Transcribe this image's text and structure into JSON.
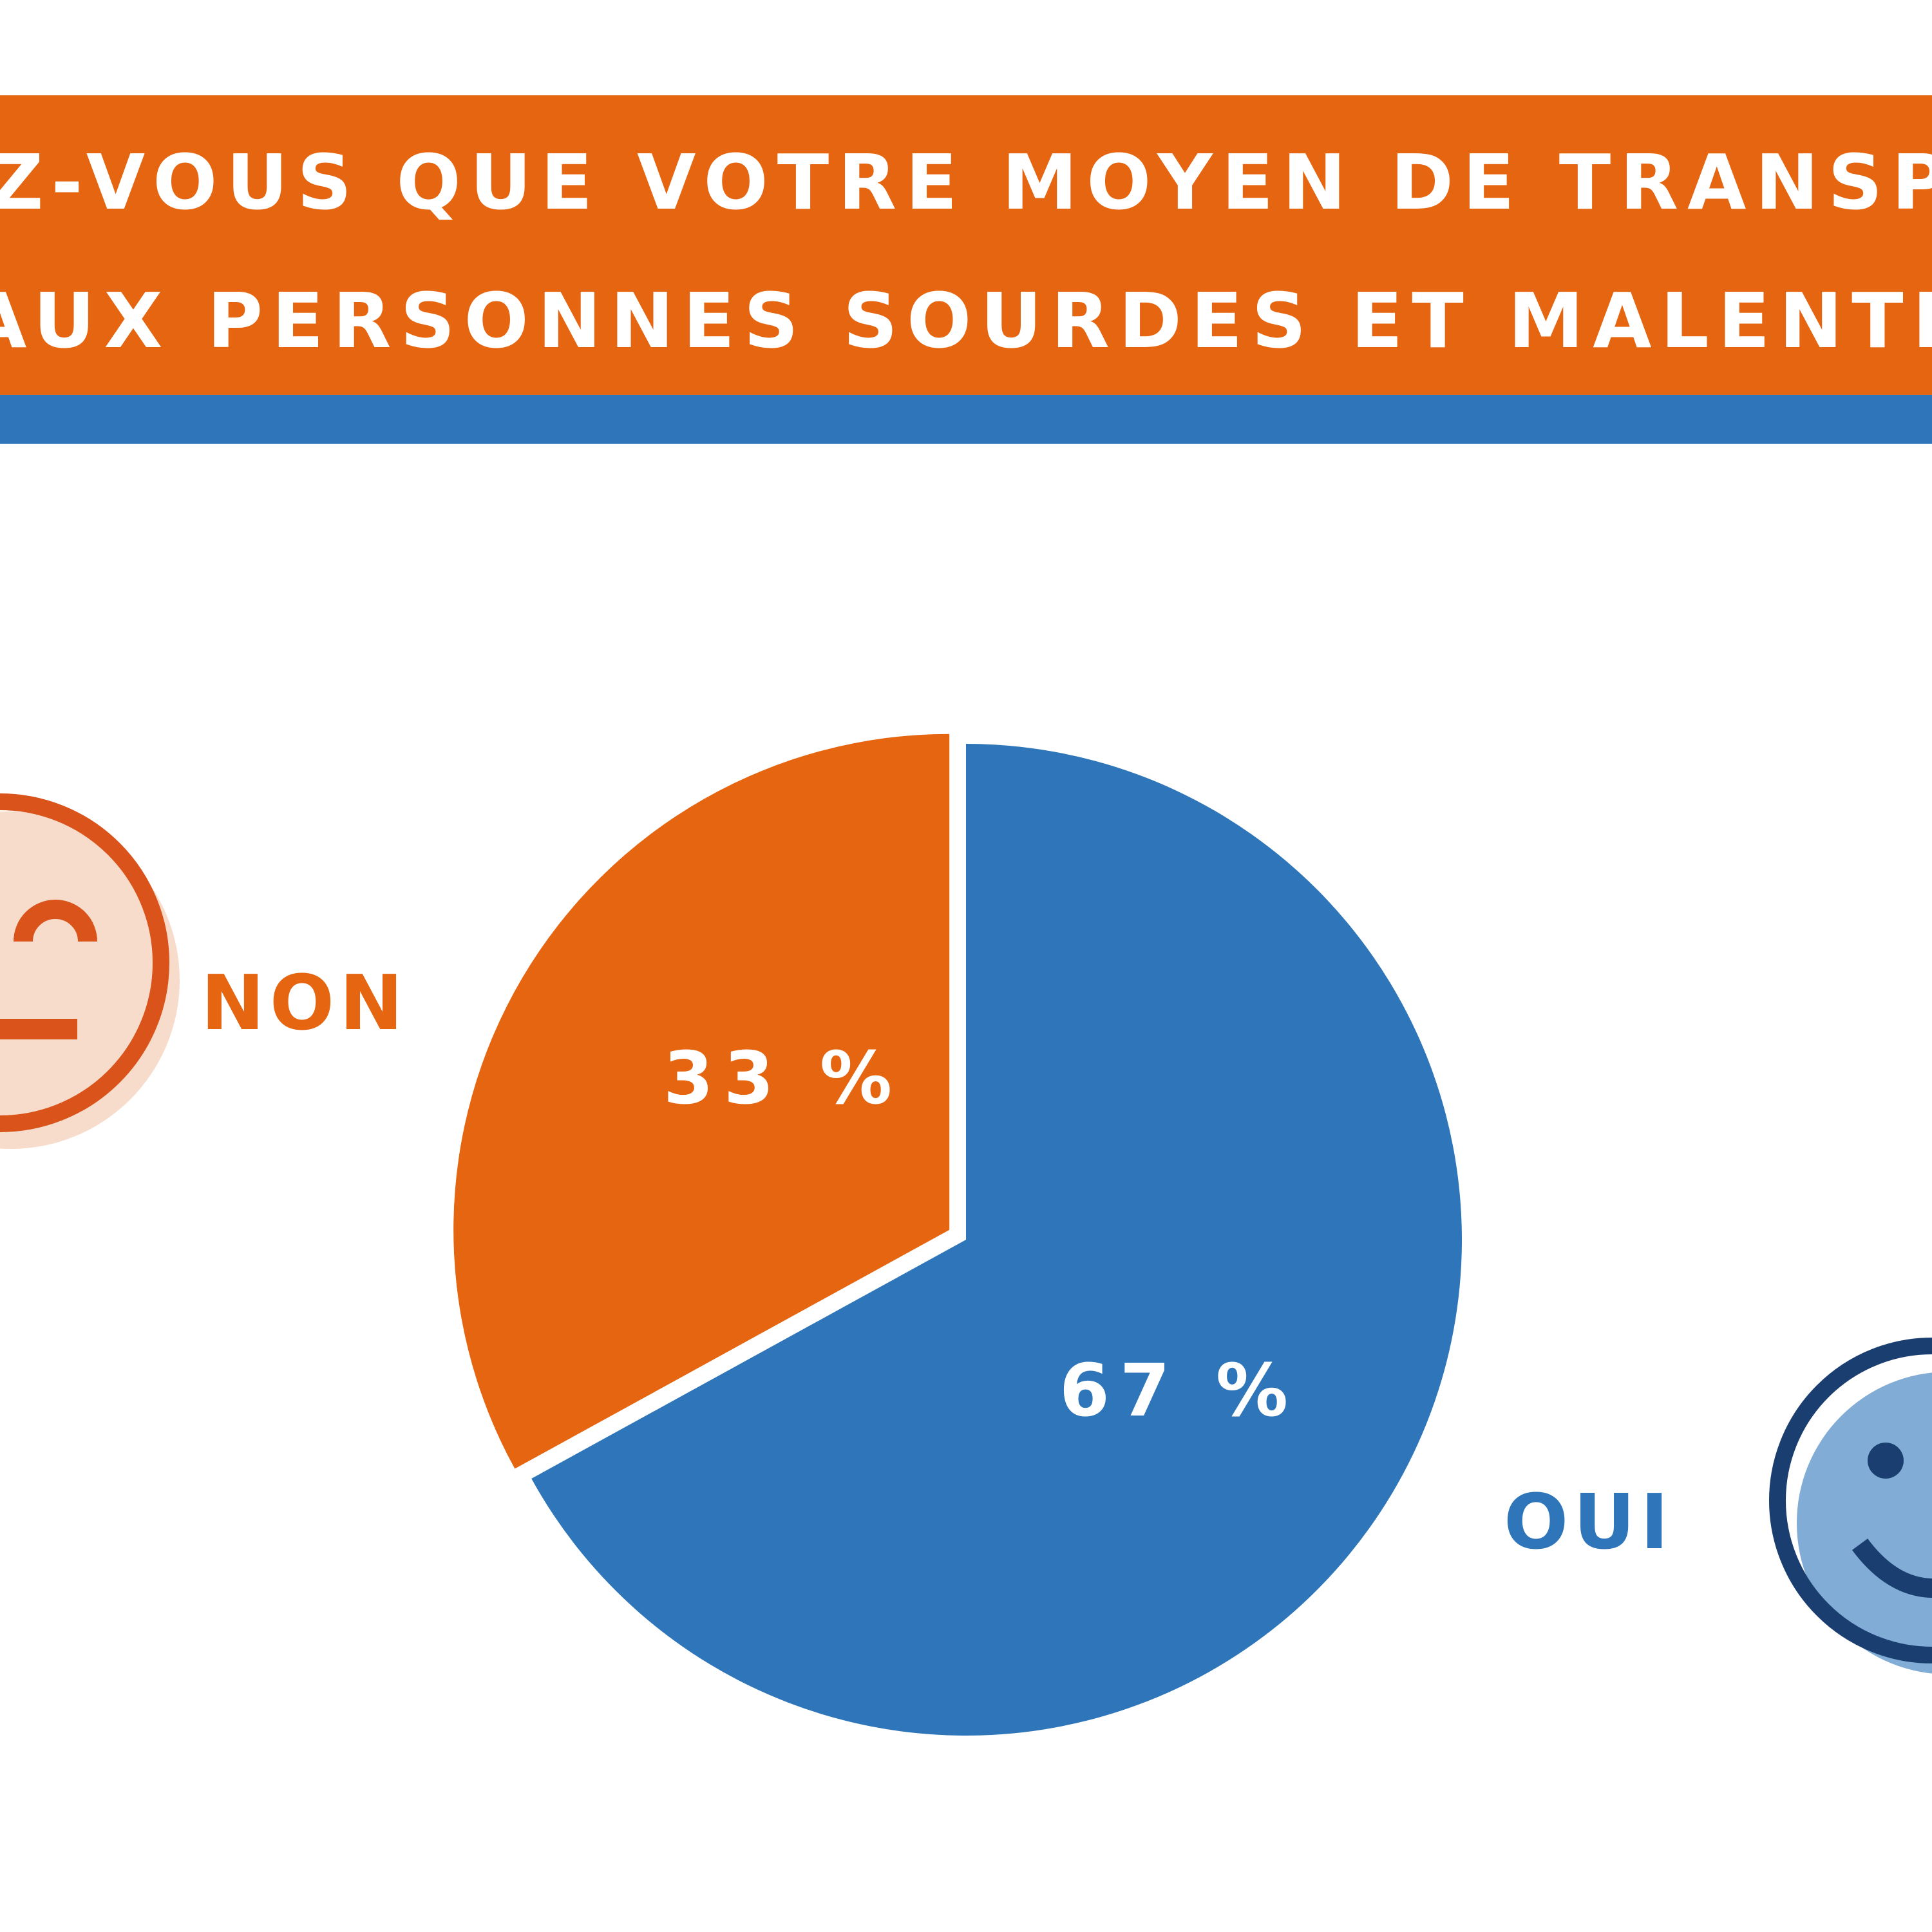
{
  "chart_data": {
    "type": "pie",
    "title_lines": [
      "Z-VOUS QUE VOTRE MOYEN DE TRANSPORT SOIT",
      "AUX PERSONNES SOURDES ET MALENTENDANTES"
    ],
    "slices": [
      {
        "label": "OUI",
        "value": 67,
        "value_label": "67 %",
        "color": "#2e76b9",
        "icon": "happy-face-icon"
      },
      {
        "label": "NON",
        "value": 33,
        "value_label": "33 %",
        "color": "#e66511",
        "icon": "neutral-face-icon"
      }
    ],
    "legend_placement": "beside-slices"
  },
  "colors": {
    "orange": "#e66511",
    "blue": "#2e76b9",
    "light_orange": "#f8dccb",
    "light_blue": "#80acd6",
    "dark_blue": "#1a3e70",
    "dark_orange": "#d9531a"
  }
}
